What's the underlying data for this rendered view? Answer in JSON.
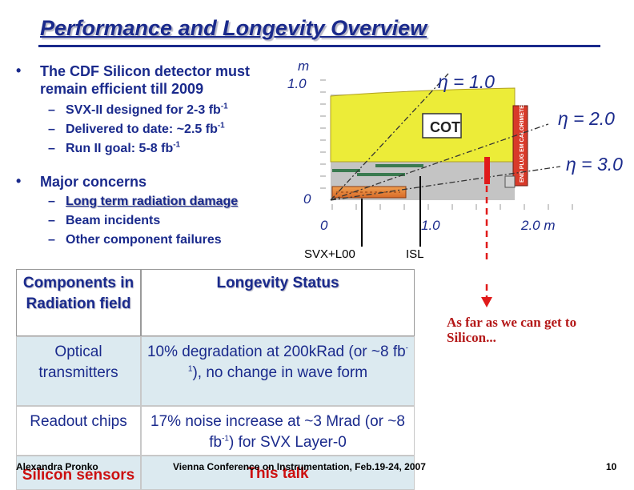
{
  "slide": {
    "title": "Performance and Longevity Overview",
    "page_number": "10",
    "footer_author": "Alexandra Pronko",
    "footer_conference": "Vienna Conference on Instrumentation, Feb.19-24, 2007"
  },
  "bullets": {
    "b1_text": "The CDF Silicon detector must remain efficient till 2009",
    "b1_sub1_a": "SVX-II designed for 2-3 fb",
    "b1_sub1_sup": "-1",
    "b1_sub2_a": "Delivered to date: ~2.5 fb",
    "b1_sub2_sup": "-1",
    "b1_sub3_a": "Run II goal: 5-8 fb",
    "b1_sub3_sup": "-1",
    "b2_text": "Major concerns",
    "b2_sub1": "Long term radiation damage",
    "b2_sub2": "Beam incidents",
    "b2_sub3": "Other component failures",
    "bullet_char": "•",
    "dash_char": "–"
  },
  "diagram": {
    "y_unit": "m",
    "y_top": "1.0",
    "y_zero": "0",
    "x_0": "0",
    "x_1": "1.0",
    "x_2": "2.0 m",
    "eta1": "η = 1.0",
    "eta2": "η = 2.0",
    "eta3": "η = 3.0",
    "cot": "COT",
    "plug": "END PLUG EM CALORIMETER",
    "svx_label": "SVX+L00",
    "isl_label": "ISL",
    "colors": {
      "cot_yellow": "#ecec38",
      "plug_red": "#d83a2a",
      "svx_orange": "#e88a3a",
      "isl_green": "#3a7a50",
      "bg_gray": "#c0c0c0"
    }
  },
  "table": {
    "header_col1": "Components in Radiation field",
    "header_col2": "Longevity Status",
    "rows": [
      {
        "component": "Optical transmitters",
        "status_a": "10% degradation at 200kRad (or ~8 fb",
        "status_sup": "-1",
        "status_b": "), no change in wave form"
      },
      {
        "component": "Readout chips",
        "status_a": "17% noise increase at ~3 Mrad (or ~8 fb",
        "status_sup": "-1",
        "status_b": ") for SVX Layer-0"
      },
      {
        "component": "Silicon sensors",
        "status_a": "This talk",
        "status_sup": "",
        "status_b": ""
      }
    ]
  },
  "annotation": "As far as we can get to Silicon..."
}
